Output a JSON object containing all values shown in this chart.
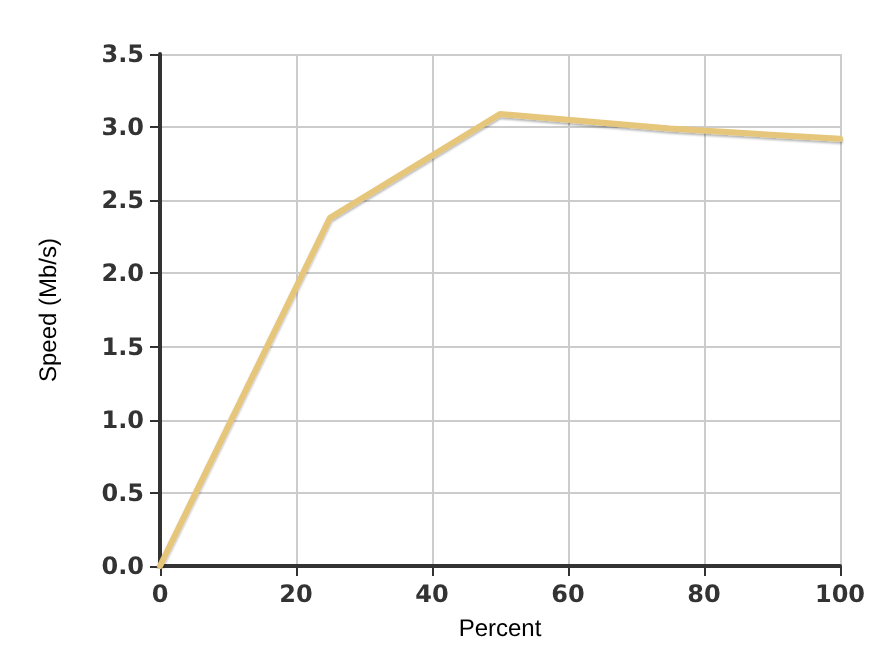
{
  "chart_data": {
    "type": "line",
    "xlabel": "Percent",
    "ylabel": "Speed (Mb/s)",
    "x": [
      0,
      25,
      50,
      75,
      100
    ],
    "series": [
      {
        "color": "#e6c67a",
        "values": [
          0,
          2.38,
          3.09,
          2.99,
          2.92
        ]
      }
    ],
    "xlim": [
      0,
      100
    ],
    "xticks": [
      0,
      20,
      40,
      60,
      80,
      100
    ],
    "ylim": [
      0,
      3.5
    ],
    "yticks": [
      {
        "value": 0,
        "label": "0.0"
      },
      0.5,
      {
        "value": 1,
        "label": "1.0"
      },
      1.5,
      {
        "value": 2,
        "label": "2.0"
      },
      2.5,
      {
        "value": 3,
        "label": "3.0"
      },
      3.5
    ],
    "grid": true,
    "marker": "none",
    "line_style": "solid"
  }
}
